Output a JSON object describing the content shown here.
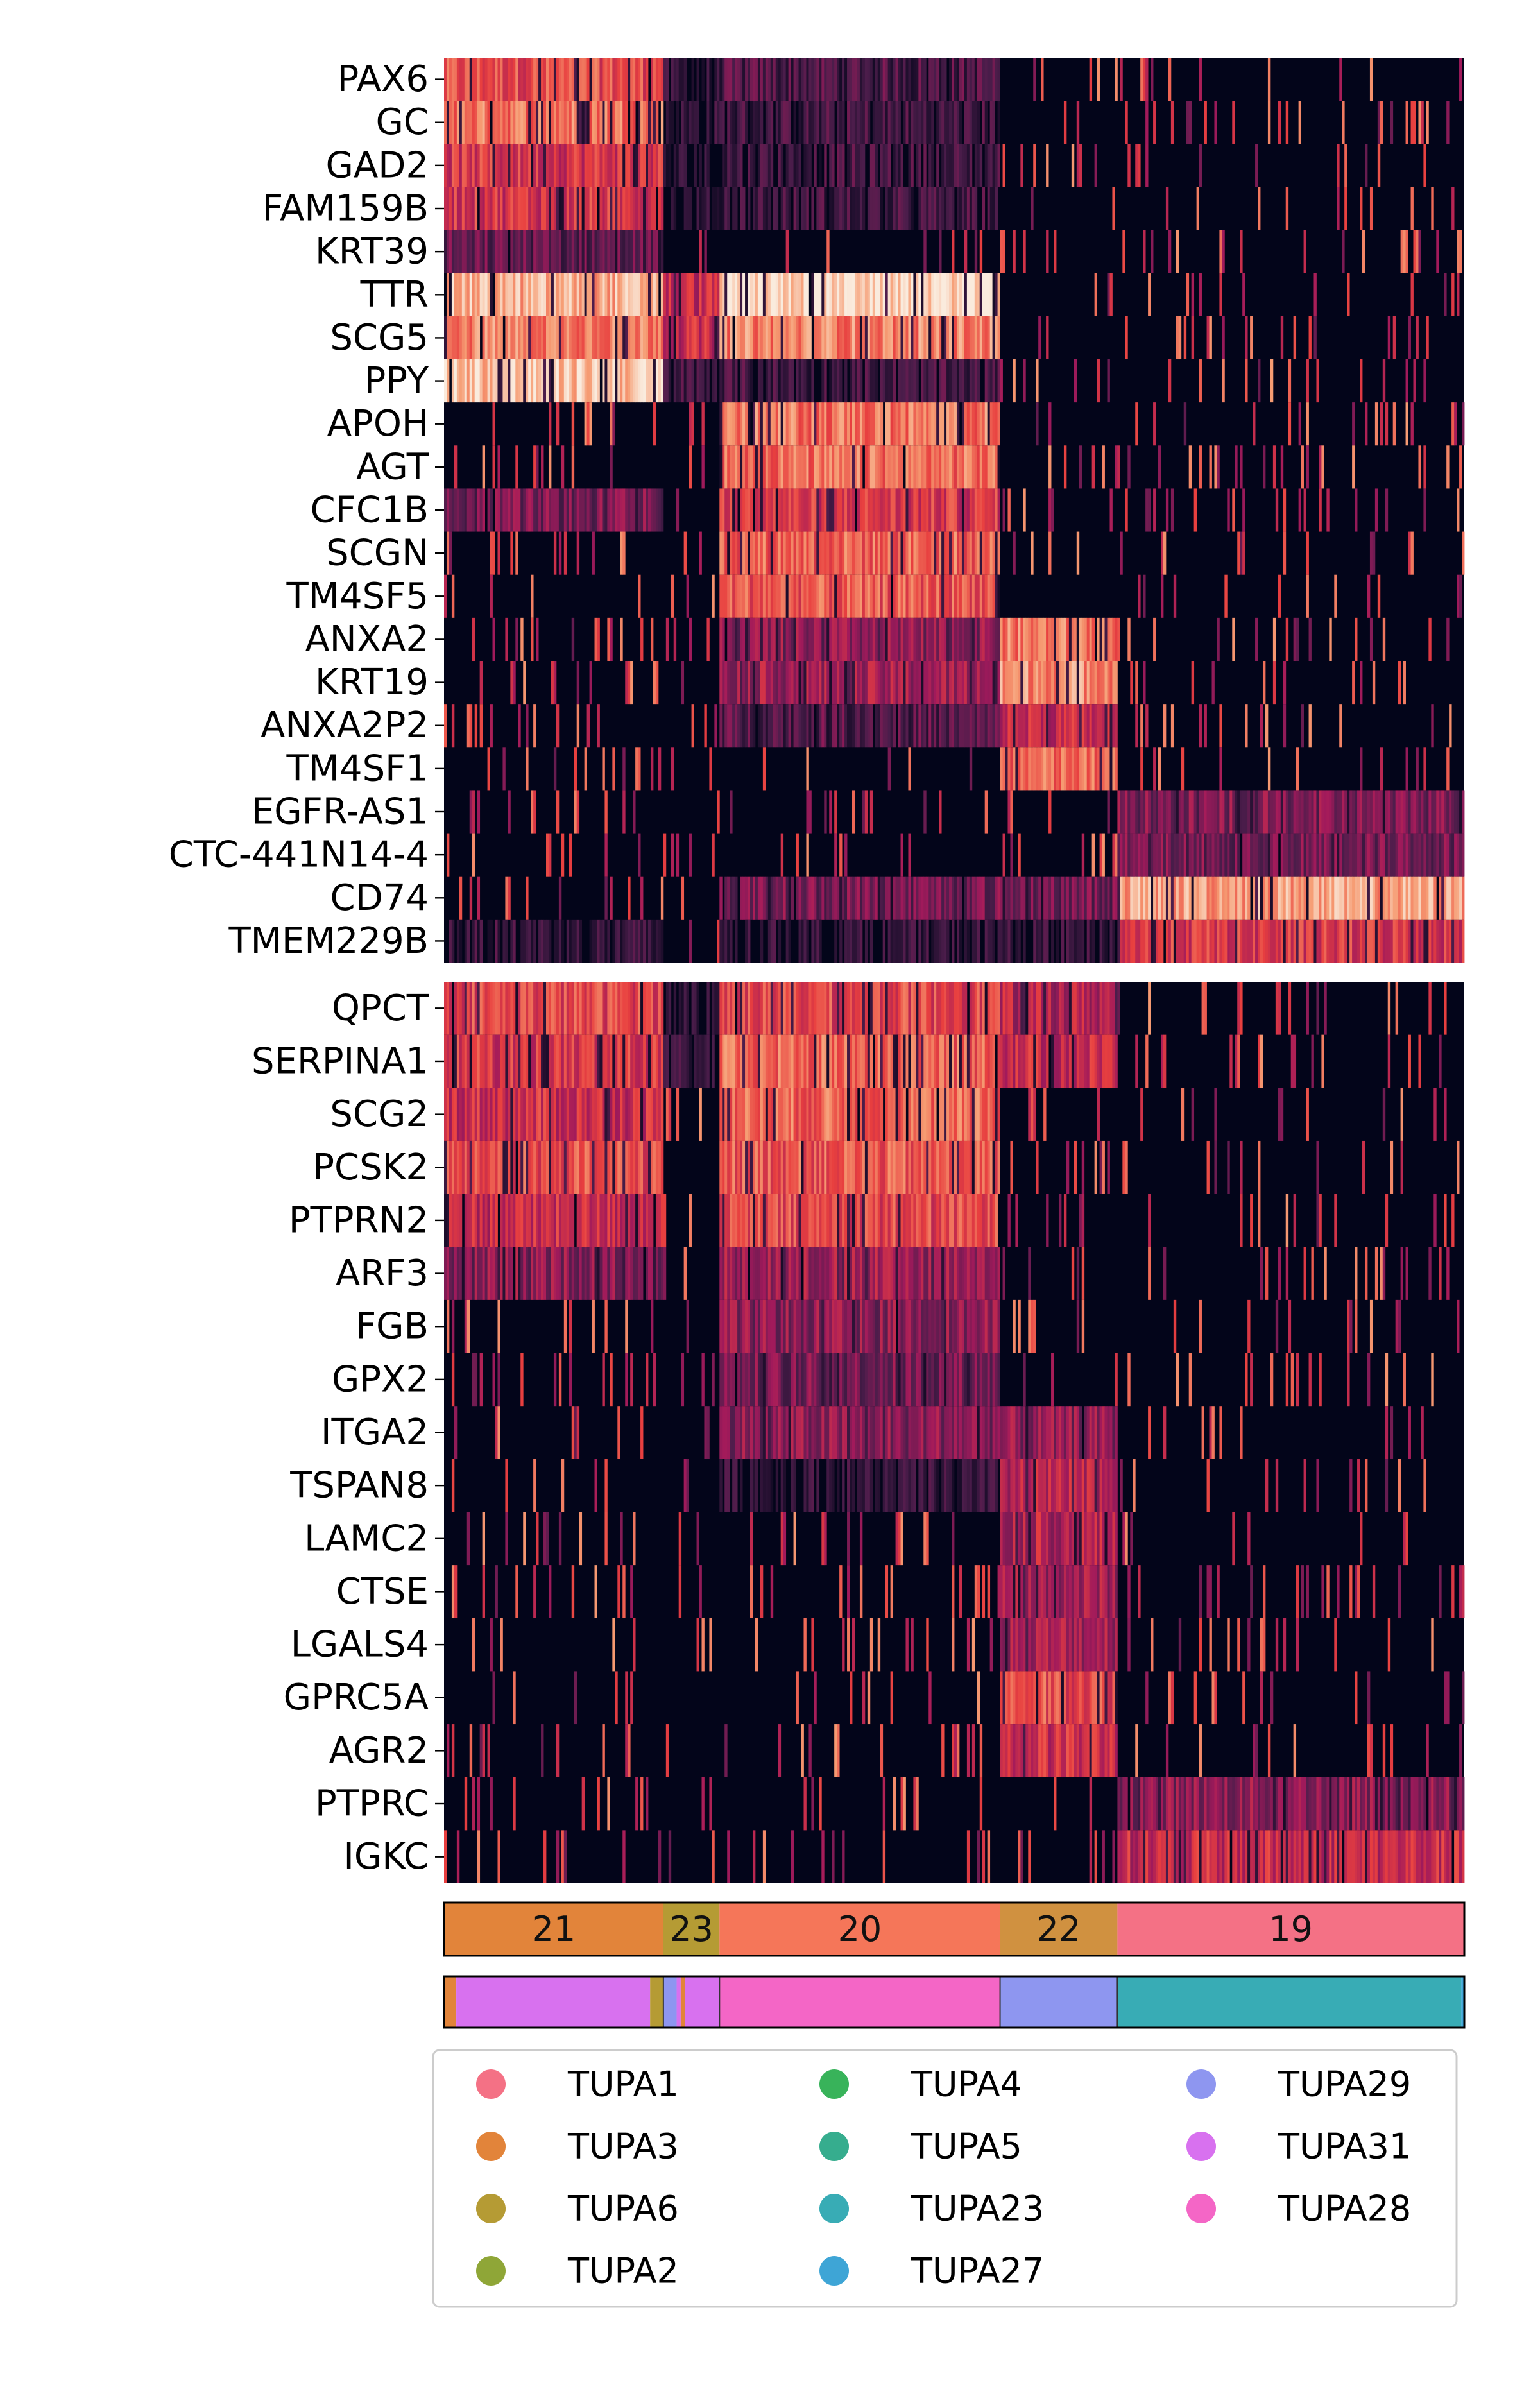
{
  "chart_data": {
    "type": "heatmap",
    "title": "",
    "colormap": [
      "#03051a",
      "#4c1d4b",
      "#a11a5b",
      "#e83f3f",
      "#f69c73",
      "#faebdd"
    ],
    "groups": [
      {
        "label": "21",
        "start": 0.0,
        "end": 0.215,
        "color": "#e2843a"
      },
      {
        "label": "23",
        "start": 0.215,
        "end": 0.27,
        "color": "#b59b34"
      },
      {
        "label": "20",
        "start": 0.27,
        "end": 0.545,
        "color": "#f57659"
      },
      {
        "label": "22",
        "start": 0.545,
        "end": 0.66,
        "color": "#d09140"
      },
      {
        "label": "19",
        "start": 0.66,
        "end": 1.0,
        "color": "#f47185"
      }
    ],
    "sample_bar": [
      {
        "sample": "TUPA3",
        "start": 0.0,
        "end": 0.012
      },
      {
        "sample": "TUPA31",
        "start": 0.012,
        "end": 0.202
      },
      {
        "sample": "TUPA6",
        "start": 0.202,
        "end": 0.215
      },
      {
        "sample": "TUPA29",
        "start": 0.215,
        "end": 0.228
      },
      {
        "sample": "TUPA31",
        "start": 0.228,
        "end": 0.232
      },
      {
        "sample": "TUPA3",
        "start": 0.232,
        "end": 0.236
      },
      {
        "sample": "TUPA31",
        "start": 0.236,
        "end": 0.27
      },
      {
        "sample": "TUPA28",
        "start": 0.27,
        "end": 0.545
      },
      {
        "sample": "TUPA29",
        "start": 0.545,
        "end": 0.66
      },
      {
        "sample": "TUPA23",
        "start": 0.66,
        "end": 0.997
      },
      {
        "sample": "TUPA27",
        "start": 0.997,
        "end": 1.0
      }
    ],
    "panels": [
      {
        "genes": [
          "PAX6",
          "GC",
          "GAD2",
          "FAM159B",
          "KRT39",
          "TTR",
          "SCG5",
          "PPY",
          "APOH",
          "AGT",
          "CFC1B",
          "SCGN",
          "TM4SF5",
          "ANXA2",
          "KRT19",
          "ANXA2P2",
          "TM4SF1",
          "EGFR-AS1",
          "CTC-441N14-4",
          "CD74",
          "TMEM229B"
        ],
        "values": [
          [
            0.62,
            0.08,
            0.2,
            0.02,
            0.02
          ],
          [
            0.72,
            0.1,
            0.15,
            0.02,
            0.02
          ],
          [
            0.55,
            0.08,
            0.15,
            0.02,
            0.02
          ],
          [
            0.55,
            0.06,
            0.15,
            0.02,
            0.02
          ],
          [
            0.25,
            0.02,
            0.02,
            0.02,
            0.02
          ],
          [
            0.85,
            0.5,
            0.95,
            0.02,
            0.02
          ],
          [
            0.75,
            0.5,
            0.75,
            0.02,
            0.02
          ],
          [
            0.9,
            0.15,
            0.15,
            0.02,
            0.02
          ],
          [
            0.03,
            0.02,
            0.72,
            0.02,
            0.02
          ],
          [
            0.03,
            0.02,
            0.7,
            0.02,
            0.02
          ],
          [
            0.3,
            0.05,
            0.55,
            0.02,
            0.02
          ],
          [
            0.05,
            0.02,
            0.68,
            0.02,
            0.02
          ],
          [
            0.05,
            0.02,
            0.65,
            0.02,
            0.02
          ],
          [
            0.05,
            0.05,
            0.35,
            0.72,
            0.05
          ],
          [
            0.05,
            0.05,
            0.4,
            0.78,
            0.02
          ],
          [
            0.03,
            0.03,
            0.22,
            0.5,
            0.02
          ],
          [
            0.02,
            0.02,
            0.02,
            0.68,
            0.02
          ],
          [
            0.02,
            0.02,
            0.02,
            0.02,
            0.32
          ],
          [
            0.02,
            0.02,
            0.02,
            0.02,
            0.3
          ],
          [
            0.05,
            0.05,
            0.3,
            0.3,
            0.82
          ],
          [
            0.12,
            0.05,
            0.1,
            0.1,
            0.55
          ]
        ]
      },
      {
        "genes": [
          "QPCT",
          "SERPINA1",
          "SCG2",
          "PCSK2",
          "PTPRN2",
          "ARF3",
          "FGB",
          "GPX2",
          "ITGA2",
          "TSPAN8",
          "LAMC2",
          "CTSE",
          "LGALS4",
          "GPRC5A",
          "AGR2",
          "PTPRC",
          "IGKC"
        ],
        "values": [
          [
            0.6,
            0.08,
            0.6,
            0.45,
            0.02
          ],
          [
            0.55,
            0.1,
            0.68,
            0.5,
            0.02
          ],
          [
            0.52,
            0.05,
            0.68,
            0.02,
            0.02
          ],
          [
            0.62,
            0.05,
            0.65,
            0.02,
            0.02
          ],
          [
            0.5,
            0.05,
            0.6,
            0.02,
            0.02
          ],
          [
            0.35,
            0.05,
            0.4,
            0.03,
            0.02
          ],
          [
            0.03,
            0.02,
            0.35,
            0.02,
            0.02
          ],
          [
            0.05,
            0.02,
            0.3,
            0.02,
            0.02
          ],
          [
            0.05,
            0.05,
            0.35,
            0.35,
            0.02
          ],
          [
            0.05,
            0.05,
            0.1,
            0.45,
            0.02
          ],
          [
            0.05,
            0.05,
            0.05,
            0.45,
            0.02
          ],
          [
            0.02,
            0.02,
            0.02,
            0.4,
            0.02
          ],
          [
            0.02,
            0.05,
            0.02,
            0.42,
            0.02
          ],
          [
            0.05,
            0.05,
            0.05,
            0.62,
            0.02
          ],
          [
            0.05,
            0.05,
            0.02,
            0.52,
            0.02
          ],
          [
            0.02,
            0.02,
            0.02,
            0.02,
            0.35
          ],
          [
            0.02,
            0.02,
            0.02,
            0.02,
            0.5
          ]
        ]
      }
    ],
    "legend": {
      "placement": "bottom",
      "columns": [
        [
          {
            "label": "TUPA1",
            "color": "#f47185"
          },
          {
            "label": "TUPA3",
            "color": "#e2843a"
          },
          {
            "label": "TUPA6",
            "color": "#b59b34"
          },
          {
            "label": "TUPA2",
            "color": "#8fa637"
          }
        ],
        [
          {
            "label": "TUPA4",
            "color": "#38b35a"
          },
          {
            "label": "TUPA5",
            "color": "#36ad8e"
          },
          {
            "label": "TUPA23",
            "color": "#38acb5"
          },
          {
            "label": "TUPA27",
            "color": "#3ea5d6"
          }
        ],
        [
          {
            "label": "TUPA29",
            "color": "#8e96f0"
          },
          {
            "label": "TUPA31",
            "color": "#d871ef"
          },
          {
            "label": "TUPA28",
            "color": "#f466c6"
          }
        ]
      ]
    }
  }
}
